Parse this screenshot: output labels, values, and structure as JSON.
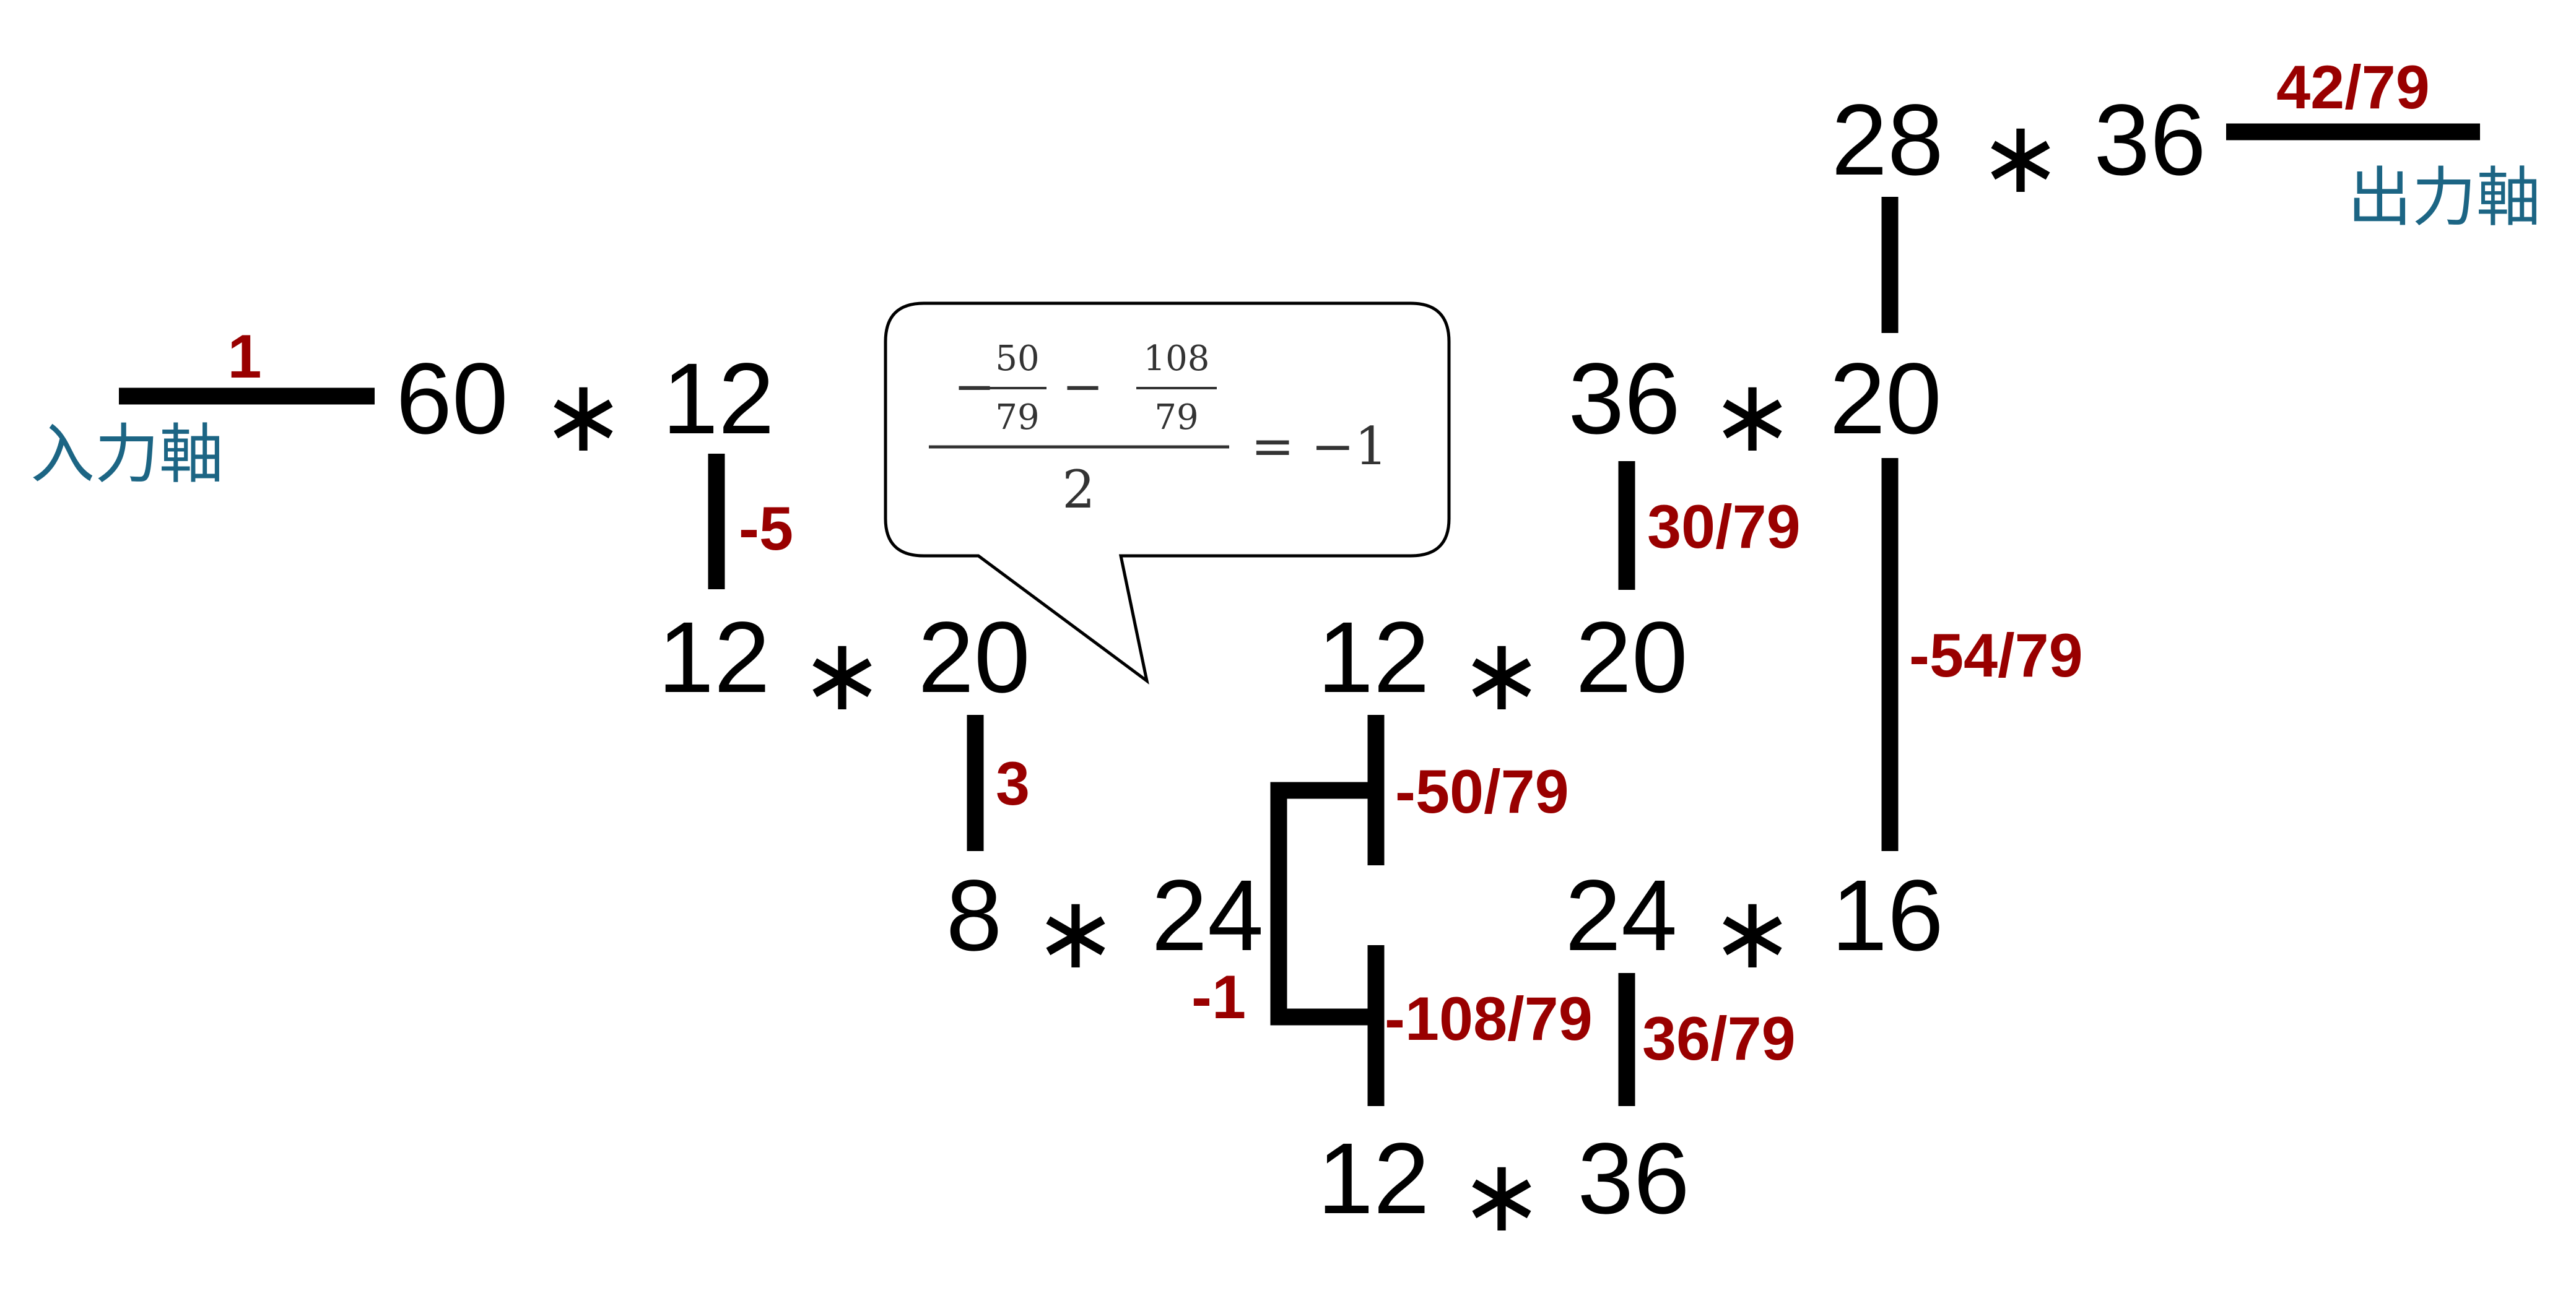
{
  "gears": {
    "g1": {
      "left": "60",
      "right": "12"
    },
    "g2": {
      "left": "12",
      "right": "20"
    },
    "g3": {
      "left": "8",
      "right": "24"
    },
    "g4": {
      "left": "12",
      "right": "20"
    },
    "g5": {
      "left": "12",
      "right": "36"
    },
    "g6": {
      "left": "36",
      "right": "20"
    },
    "g7": {
      "left": "24",
      "right": "16"
    },
    "g8": {
      "left": "28",
      "right": "36"
    }
  },
  "mesh_symbol": "∗",
  "ratios": {
    "input": "1",
    "r_g1_g2": "-5",
    "r_g2_g3": "3",
    "carrier": "-1",
    "r_g4": "-50/79",
    "r_g5": "-108/79",
    "r_g5_g7": "36/79",
    "r_g4_g6": "30/79",
    "r_g6_g7": "-54/79",
    "output": "42/79"
  },
  "labels": {
    "input_axis": "入力軸",
    "output_axis": "出力軸"
  },
  "callout": {
    "minus1": "−",
    "frac1_num": "50",
    "frac1_den": "79",
    "minus2": "−",
    "frac2_num": "108",
    "frac2_den": "79",
    "denominator": "2",
    "result": "= −1"
  },
  "colors": {
    "ratio": "#990000",
    "axis_label": "#1c6584",
    "line": "#000000"
  }
}
